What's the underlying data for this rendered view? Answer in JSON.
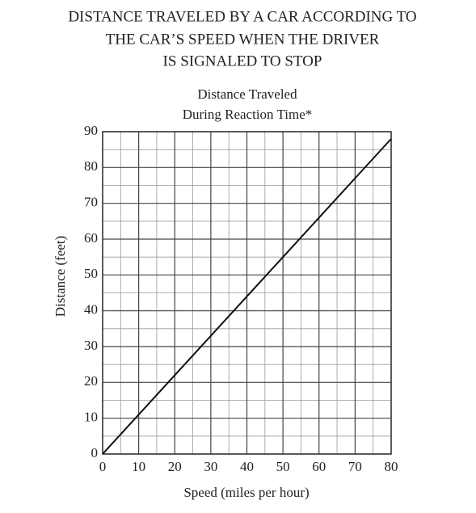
{
  "chart_data": {
    "type": "line",
    "title": [
      "DISTANCE TRAVELED BY A CAR ACCORDING TO",
      "THE CAR’S SPEED WHEN THE DRIVER",
      "IS SIGNALED TO STOP"
    ],
    "subtitle": [
      "Distance Traveled",
      "During Reaction Time*"
    ],
    "x_label": "Speed (miles per hour)",
    "y_label": "Distance (feet)",
    "x": [
      0,
      10,
      20,
      30,
      40,
      50,
      60,
      70,
      80
    ],
    "series": [
      {
        "color": "#111111",
        "values": [
          0,
          11,
          22,
          33,
          44,
          55,
          66,
          77,
          88
        ]
      }
    ],
    "xlim": [
      0,
      80
    ],
    "xticks": [
      0,
      10,
      20,
      30,
      40,
      50,
      60,
      70,
      80
    ],
    "ylim": [
      0,
      90
    ],
    "yticks": [
      0,
      10,
      20,
      30,
      40,
      50,
      60,
      70,
      80,
      90
    ],
    "grid": true,
    "minor_grid": true
  }
}
